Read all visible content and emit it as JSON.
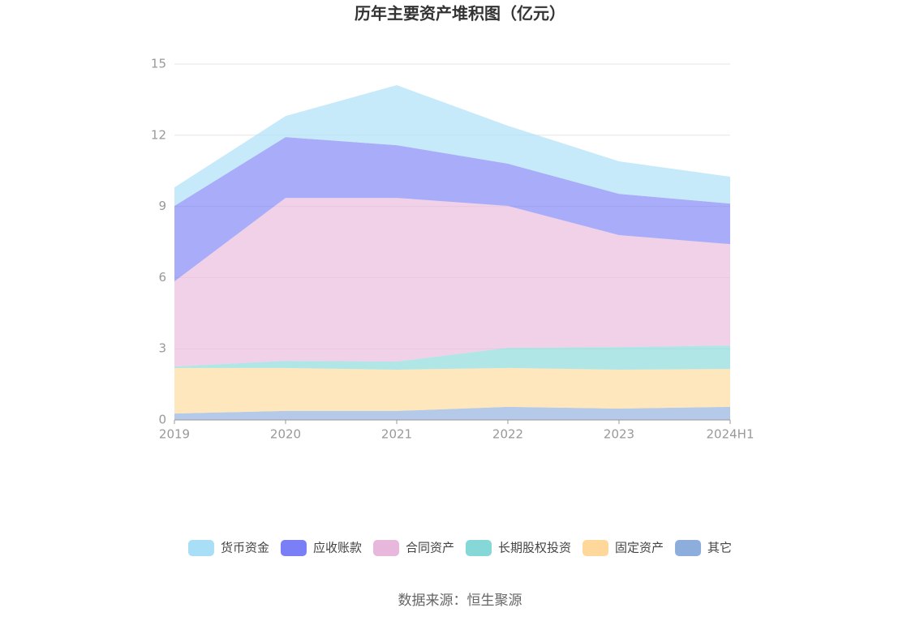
{
  "chart_data": {
    "type": "stacked-area",
    "title": "历年主要资产堆积图（亿元）",
    "categories": [
      "2019",
      "2020",
      "2021",
      "2022",
      "2023",
      "2024H1"
    ],
    "series": [
      {
        "name": "其它",
        "color": "#8daedc",
        "values": [
          0.27,
          0.38,
          0.38,
          0.55,
          0.48,
          0.55
        ]
      },
      {
        "name": "固定资产",
        "color": "#fdd89a",
        "values": [
          1.92,
          1.81,
          1.74,
          1.64,
          1.64,
          1.6
        ]
      },
      {
        "name": "长期股权投资",
        "color": "#86d8d8",
        "values": [
          0.06,
          0.3,
          0.34,
          0.85,
          0.95,
          0.99
        ]
      },
      {
        "name": "合同资产",
        "color": "#e8b8dc",
        "values": [
          3.59,
          6.87,
          6.9,
          5.98,
          4.72,
          4.27
        ]
      },
      {
        "name": "应收账款",
        "color": "#7b7ff5",
        "values": [
          3.18,
          2.56,
          2.22,
          1.78,
          1.74,
          1.71
        ]
      },
      {
        "name": "货币资金",
        "color": "#a8dff7",
        "values": [
          0.78,
          0.89,
          2.53,
          1.6,
          1.37,
          1.13
        ]
      }
    ],
    "ylim": [
      0,
      15
    ],
    "yticks": [
      0,
      3,
      6,
      9,
      12,
      15
    ],
    "grid": true,
    "source": "数据来源：恒生聚源"
  }
}
